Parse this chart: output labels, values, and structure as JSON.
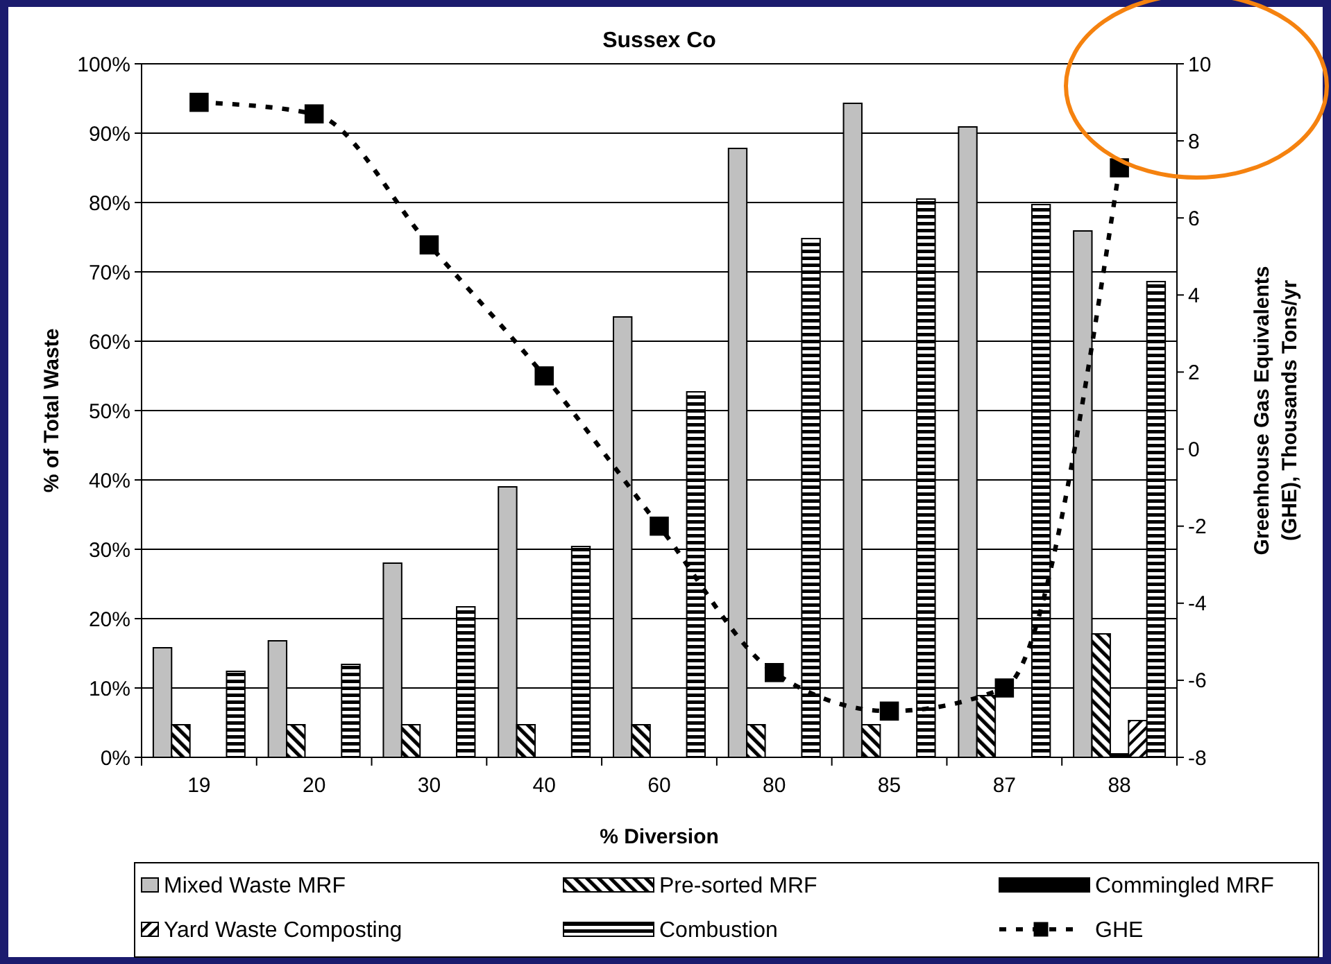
{
  "chart_data": {
    "type": "bar",
    "title": "Sussex Co",
    "xlabel": "% Diversion",
    "ylabel": "% of Total Waste",
    "y2label": "Greenhouse Gas Equivalents (GHE), Thousands Tons/yr",
    "categories": [
      "19",
      "20",
      "30",
      "40",
      "60",
      "80",
      "85",
      "87",
      "88"
    ],
    "series": [
      {
        "name": "Mixed Waste MRF",
        "color": "#c0c0c0",
        "values": [
          15.8,
          16.8,
          28,
          39,
          63.5,
          87.8,
          94.3,
          90.9,
          75.9
        ]
      },
      {
        "name": "Pre-sorted MRF",
        "color": "#000000",
        "values": [
          4.7,
          4.7,
          4.7,
          4.7,
          4.7,
          4.7,
          4.7,
          8.9,
          17.8
        ]
      },
      {
        "name": "Commingled MRF",
        "color": "#000000",
        "values": [
          0,
          0,
          0,
          0,
          0,
          0,
          0,
          0,
          0.5
        ]
      },
      {
        "name": "Yard Waste Composting",
        "color": "#000000",
        "values": [
          0,
          0,
          0,
          0,
          0,
          0,
          0,
          0,
          5.3
        ]
      },
      {
        "name": "Combustion",
        "color": "#000000",
        "values": [
          12.4,
          13.4,
          21.7,
          30.4,
          52.7,
          74.8,
          80.5,
          79.7,
          68.6
        ]
      },
      {
        "name": "GHE",
        "type": "line",
        "axis": "y2",
        "color": "#000000",
        "marker": "square",
        "line_style": "dashed",
        "values": [
          9.0,
          8.7,
          5.3,
          1.9,
          -2.0,
          -5.8,
          -6.8,
          -6.2,
          7.3
        ]
      }
    ],
    "ylim": [
      0,
      100
    ],
    "yticks": [
      {
        "value": 0,
        "label": "0%"
      },
      {
        "value": 10,
        "label": "10%"
      },
      {
        "value": 20,
        "label": "20%"
      },
      {
        "value": 30,
        "label": "30%"
      },
      {
        "value": 40,
        "label": "40%"
      },
      {
        "value": 50,
        "label": "50%"
      },
      {
        "value": 60,
        "label": "60%"
      },
      {
        "value": 70,
        "label": "70%"
      },
      {
        "value": 80,
        "label": "80%"
      },
      {
        "value": 90,
        "label": "90%"
      },
      {
        "value": 100,
        "label": "100%"
      }
    ],
    "y2lim": [
      -8,
      10
    ],
    "y2ticks": [
      -8,
      -6,
      -4,
      -2,
      0,
      2,
      4,
      6,
      8,
      10
    ],
    "grid": "y",
    "legend": "bottom"
  }
}
